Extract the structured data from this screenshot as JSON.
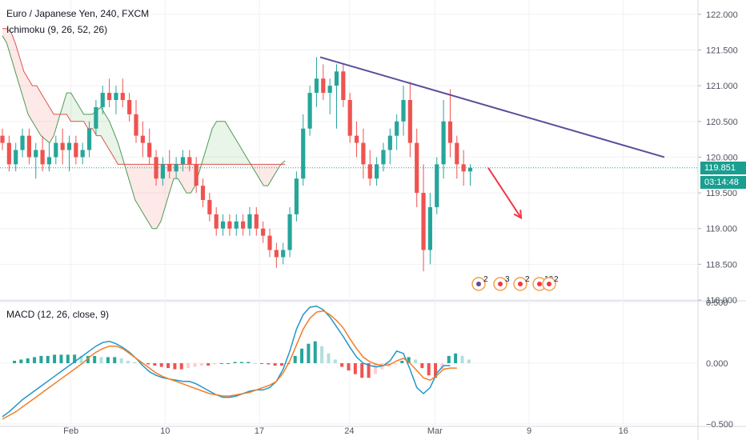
{
  "symbol_line": "Euro / Japanese Yen, 240, FXCM",
  "indicators": {
    "ichimoku_label": "Ichimoku (9, 26, 52, 26)",
    "macd_label": "MACD (12, 26, close, 9)"
  },
  "price_tags": {
    "last_price": "119.851",
    "countdown": "03:14:48"
  },
  "event_badges": [
    "2",
    "3",
    "2",
    "10",
    "2"
  ],
  "chart_data": [
    {
      "type": "candlestick",
      "title": "Euro / Japanese Yen, 240, FXCM",
      "ylim": [
        118.0,
        122.2
      ],
      "y_ticks": [
        "122.000",
        "121.500",
        "121.000",
        "120.500",
        "120.000",
        "119.500",
        "119.000",
        "118.500",
        "118.000"
      ],
      "y_tick_values": [
        122.0,
        121.5,
        121.0,
        120.5,
        120.0,
        119.5,
        119.0,
        118.5,
        118.0
      ],
      "x_tick_labels": [
        "Feb",
        "10",
        "17",
        "24",
        "Mar",
        "9",
        "16"
      ],
      "last_price": 119.851,
      "candles": [
        {
          "o": 120.3,
          "h": 120.4,
          "l": 120.1,
          "c": 120.2
        },
        {
          "o": 120.2,
          "h": 120.3,
          "l": 119.8,
          "c": 119.9
        },
        {
          "o": 119.9,
          "h": 120.2,
          "l": 119.8,
          "c": 120.1
        },
        {
          "o": 120.1,
          "h": 120.4,
          "l": 120.0,
          "c": 120.3
        },
        {
          "o": 120.3,
          "h": 120.4,
          "l": 119.9,
          "c": 120.0
        },
        {
          "o": 120.0,
          "h": 120.2,
          "l": 119.7,
          "c": 120.1
        },
        {
          "o": 120.1,
          "h": 120.3,
          "l": 119.8,
          "c": 119.9
        },
        {
          "o": 119.9,
          "h": 120.2,
          "l": 119.8,
          "c": 120.0
        },
        {
          "o": 120.0,
          "h": 120.3,
          "l": 119.9,
          "c": 120.2
        },
        {
          "o": 120.2,
          "h": 120.4,
          "l": 119.9,
          "c": 120.1
        },
        {
          "o": 120.1,
          "h": 120.3,
          "l": 119.8,
          "c": 120.2
        },
        {
          "o": 120.2,
          "h": 120.3,
          "l": 119.9,
          "c": 120.0
        },
        {
          "o": 120.0,
          "h": 120.2,
          "l": 119.9,
          "c": 120.1
        },
        {
          "o": 120.1,
          "h": 120.5,
          "l": 120.0,
          "c": 120.4
        },
        {
          "o": 120.4,
          "h": 120.8,
          "l": 120.3,
          "c": 120.7
        },
        {
          "o": 120.7,
          "h": 121.0,
          "l": 120.6,
          "c": 120.9
        },
        {
          "o": 120.9,
          "h": 121.1,
          "l": 120.7,
          "c": 120.8
        },
        {
          "o": 120.8,
          "h": 121.0,
          "l": 120.6,
          "c": 120.9
        },
        {
          "o": 120.9,
          "h": 121.1,
          "l": 120.7,
          "c": 120.8
        },
        {
          "o": 120.8,
          "h": 120.9,
          "l": 120.5,
          "c": 120.6
        },
        {
          "o": 120.6,
          "h": 120.8,
          "l": 120.2,
          "c": 120.3
        },
        {
          "o": 120.3,
          "h": 120.5,
          "l": 120.0,
          "c": 120.2
        },
        {
          "o": 120.2,
          "h": 120.4,
          "l": 119.9,
          "c": 120.0
        },
        {
          "o": 120.0,
          "h": 120.1,
          "l": 119.6,
          "c": 119.7
        },
        {
          "o": 119.7,
          "h": 120.0,
          "l": 119.6,
          "c": 119.9
        },
        {
          "o": 119.9,
          "h": 120.1,
          "l": 119.7,
          "c": 119.8
        },
        {
          "o": 119.8,
          "h": 120.0,
          "l": 119.7,
          "c": 119.9
        },
        {
          "o": 119.9,
          "h": 120.1,
          "l": 119.8,
          "c": 120.0
        },
        {
          "o": 120.0,
          "h": 120.1,
          "l": 119.8,
          "c": 119.9
        },
        {
          "o": 119.9,
          "h": 120.0,
          "l": 119.5,
          "c": 119.6
        },
        {
          "o": 119.6,
          "h": 119.7,
          "l": 119.3,
          "c": 119.4
        },
        {
          "o": 119.4,
          "h": 119.5,
          "l": 119.1,
          "c": 119.2
        },
        {
          "o": 119.2,
          "h": 119.3,
          "l": 118.9,
          "c": 119.0
        },
        {
          "o": 119.0,
          "h": 119.2,
          "l": 118.9,
          "c": 119.1
        },
        {
          "o": 119.1,
          "h": 119.2,
          "l": 118.9,
          "c": 119.0
        },
        {
          "o": 119.0,
          "h": 119.2,
          "l": 118.9,
          "c": 119.1
        },
        {
          "o": 119.1,
          "h": 119.2,
          "l": 118.9,
          "c": 119.0
        },
        {
          "o": 119.0,
          "h": 119.3,
          "l": 118.9,
          "c": 119.2
        },
        {
          "o": 119.2,
          "h": 119.3,
          "l": 118.9,
          "c": 119.0
        },
        {
          "o": 119.0,
          "h": 119.1,
          "l": 118.8,
          "c": 118.9
        },
        {
          "o": 118.9,
          "h": 119.0,
          "l": 118.6,
          "c": 118.7
        },
        {
          "o": 118.7,
          "h": 118.8,
          "l": 118.45,
          "c": 118.6
        },
        {
          "o": 118.6,
          "h": 118.8,
          "l": 118.5,
          "c": 118.7
        },
        {
          "o": 118.7,
          "h": 119.3,
          "l": 118.6,
          "c": 119.2
        },
        {
          "o": 119.2,
          "h": 119.8,
          "l": 119.1,
          "c": 119.7
        },
        {
          "o": 119.7,
          "h": 120.6,
          "l": 119.6,
          "c": 120.4
        },
        {
          "o": 120.4,
          "h": 121.0,
          "l": 120.3,
          "c": 120.9
        },
        {
          "o": 120.9,
          "h": 121.4,
          "l": 120.7,
          "c": 121.1
        },
        {
          "o": 121.1,
          "h": 121.3,
          "l": 120.8,
          "c": 120.9
        },
        {
          "o": 120.9,
          "h": 121.1,
          "l": 120.6,
          "c": 121.0
        },
        {
          "o": 121.0,
          "h": 121.3,
          "l": 120.4,
          "c": 121.2
        },
        {
          "o": 121.2,
          "h": 121.3,
          "l": 120.7,
          "c": 120.8
        },
        {
          "o": 120.8,
          "h": 120.9,
          "l": 120.2,
          "c": 120.3
        },
        {
          "o": 120.3,
          "h": 120.5,
          "l": 120.0,
          "c": 120.2
        },
        {
          "o": 120.2,
          "h": 120.4,
          "l": 119.7,
          "c": 119.9
        },
        {
          "o": 119.9,
          "h": 120.1,
          "l": 119.6,
          "c": 119.7
        },
        {
          "o": 119.7,
          "h": 120.0,
          "l": 119.6,
          "c": 119.9
        },
        {
          "o": 119.9,
          "h": 120.2,
          "l": 119.8,
          "c": 120.1
        },
        {
          "o": 120.1,
          "h": 120.4,
          "l": 119.9,
          "c": 120.3
        },
        {
          "o": 120.3,
          "h": 120.6,
          "l": 120.1,
          "c": 120.5
        },
        {
          "o": 120.5,
          "h": 121.0,
          "l": 120.3,
          "c": 120.8
        },
        {
          "o": 120.8,
          "h": 121.05,
          "l": 120.0,
          "c": 120.2
        },
        {
          "o": 120.2,
          "h": 120.4,
          "l": 119.3,
          "c": 119.5
        },
        {
          "o": 119.5,
          "h": 119.9,
          "l": 118.4,
          "c": 118.7
        },
        {
          "o": 118.7,
          "h": 119.5,
          "l": 118.5,
          "c": 119.3
        },
        {
          "o": 119.3,
          "h": 120.0,
          "l": 119.2,
          "c": 119.9
        },
        {
          "o": 119.9,
          "h": 120.8,
          "l": 119.7,
          "c": 120.5
        },
        {
          "o": 120.5,
          "h": 120.95,
          "l": 120.0,
          "c": 120.2
        },
        {
          "o": 120.2,
          "h": 120.3,
          "l": 119.7,
          "c": 119.9
        },
        {
          "o": 119.9,
          "h": 120.1,
          "l": 119.6,
          "c": 119.8
        },
        {
          "o": 119.8,
          "h": 119.9,
          "l": 119.6,
          "c": 119.85
        }
      ],
      "ichimoku": {
        "conversion_line": [
          120.6,
          120.45,
          120.3,
          120.2,
          120.2,
          120.15,
          120.1,
          120.1,
          120.15,
          120.2,
          120.2,
          120.25,
          120.3,
          120.5,
          120.7,
          120.85,
          120.9,
          120.9,
          120.9,
          120.85,
          120.7,
          120.5,
          120.3,
          120.1,
          120.0,
          120.0,
          120.0,
          120.0,
          120.0,
          119.8,
          119.6,
          119.4,
          119.2,
          119.1,
          119.1,
          119.1,
          119.1,
          119.1,
          119.1,
          119.0,
          118.9,
          118.8,
          118.8,
          119.0,
          119.3,
          119.8,
          120.3,
          120.7,
          120.8,
          120.9,
          120.9,
          120.8,
          120.6,
          120.4,
          120.2,
          120.0,
          119.9,
          120.0,
          120.1,
          120.2,
          120.4,
          120.5,
          120.2,
          119.8,
          119.6,
          119.8,
          120.1,
          120.2,
          120.0,
          119.9,
          119.9
        ],
        "base_line": [
          121.6,
          121.5,
          121.3,
          121.1,
          120.9,
          120.8,
          120.7,
          120.7,
          120.7,
          120.8,
          120.9,
          121.0,
          121.1,
          121.1,
          121.1,
          121.1,
          121.1,
          121.0,
          121.0,
          121.0,
          120.95,
          120.9,
          120.85,
          120.8,
          120.8,
          120.7,
          120.5,
          120.3,
          120.1,
          120.0,
          119.9,
          119.8,
          119.7,
          119.6,
          119.5,
          119.5,
          119.5,
          119.5,
          119.5,
          119.5,
          119.5,
          119.5,
          119.6,
          119.8,
          120.0,
          120.0,
          120.0,
          120.0,
          120.0,
          120.0,
          120.0,
          119.9,
          119.9,
          119.9,
          119.9,
          119.9,
          119.9,
          119.9,
          119.9,
          119.9,
          119.9,
          119.9,
          119.9,
          119.9,
          119.9,
          119.9,
          119.9,
          119.9,
          119.9,
          119.9,
          119.9
        ],
        "leading_span_a": [
          121.7,
          121.6,
          121.4,
          121.2,
          121.0,
          120.8,
          120.6,
          120.5,
          120.4,
          120.3,
          120.25,
          120.2,
          120.3,
          120.5,
          120.7,
          120.9,
          120.9,
          120.8,
          120.7,
          120.6,
          120.6,
          120.6,
          120.65,
          120.7,
          120.6,
          120.5,
          120.35,
          120.2,
          120.0,
          119.8,
          119.6,
          119.4,
          119.3,
          119.2,
          119.1,
          119.0,
          119.0,
          119.1,
          119.3,
          119.5,
          119.7,
          119.7,
          119.6,
          119.5,
          119.5,
          119.6,
          119.8,
          120.0,
          120.2,
          120.4,
          120.5,
          120.5,
          120.5,
          120.4,
          120.3,
          120.2,
          120.1,
          120.0,
          119.9,
          119.8,
          119.7,
          119.6,
          119.6,
          119.7,
          119.8,
          119.9,
          119.95
        ],
        "leading_span_b": [
          121.8,
          121.8,
          121.75,
          121.6,
          121.4,
          121.2,
          121.1,
          121.0,
          121.0,
          120.9,
          120.8,
          120.7,
          120.6,
          120.6,
          120.6,
          120.6,
          120.5,
          120.5,
          120.5,
          120.5,
          120.4,
          120.4,
          120.3,
          120.3,
          120.2,
          120.1,
          120.0,
          119.9,
          119.9,
          119.9,
          119.9,
          119.9,
          119.9,
          119.9,
          119.9,
          119.9,
          119.9,
          119.9,
          119.9,
          119.9,
          119.9,
          119.9,
          119.9,
          119.9,
          119.9,
          119.9,
          119.9,
          119.9,
          119.9,
          119.9,
          119.9,
          119.9,
          119.9,
          119.9,
          119.9,
          119.9,
          119.9,
          119.9,
          119.9,
          119.9,
          119.9,
          119.9,
          119.9,
          119.9,
          119.9,
          119.9,
          119.9
        ]
      },
      "drawings": {
        "trendline": {
          "from": {
            "bar": 68,
            "price": 121.4
          },
          "to": {
            "bar": 142,
            "price": 120.0
          }
        },
        "arrow": {
          "from": {
            "bar": 104,
            "price": 119.85
          },
          "to": {
            "bar": 112,
            "price": 119.15
          }
        }
      }
    },
    {
      "type": "macd",
      "title": "MACD (12, 26, close, 9)",
      "ylim": [
        -0.5,
        0.5
      ],
      "y_ticks": [
        "0.500",
        "0.000",
        "−0.500"
      ],
      "y_tick_values": [
        0.5,
        0.0,
        -0.5
      ],
      "macd": [
        -0.44,
        -0.4,
        -0.35,
        -0.3,
        -0.26,
        -0.22,
        -0.18,
        -0.14,
        -0.1,
        -0.06,
        -0.02,
        0.02,
        0.06,
        0.1,
        0.14,
        0.17,
        0.18,
        0.16,
        0.13,
        0.09,
        0.04,
        -0.02,
        -0.07,
        -0.1,
        -0.12,
        -0.13,
        -0.14,
        -0.15,
        -0.15,
        -0.17,
        -0.2,
        -0.23,
        -0.26,
        -0.28,
        -0.28,
        -0.27,
        -0.25,
        -0.23,
        -0.22,
        -0.22,
        -0.2,
        -0.15,
        -0.05,
        0.1,
        0.28,
        0.4,
        0.46,
        0.47,
        0.44,
        0.38,
        0.3,
        0.22,
        0.13,
        0.05,
        0.0,
        -0.02,
        -0.03,
        -0.02,
        0.02,
        0.1,
        0.08,
        -0.05,
        -0.2,
        -0.25,
        -0.2,
        -0.08,
        -0.02,
        -0.02
      ],
      "signal": [
        -0.46,
        -0.43,
        -0.4,
        -0.36,
        -0.32,
        -0.28,
        -0.24,
        -0.2,
        -0.16,
        -0.12,
        -0.08,
        -0.04,
        0.0,
        0.05,
        0.09,
        0.12,
        0.14,
        0.14,
        0.12,
        0.08,
        0.04,
        0.0,
        -0.04,
        -0.08,
        -0.11,
        -0.13,
        -0.15,
        -0.17,
        -0.19,
        -0.21,
        -0.23,
        -0.25,
        -0.26,
        -0.27,
        -0.27,
        -0.26,
        -0.25,
        -0.24,
        -0.22,
        -0.2,
        -0.18,
        -0.15,
        -0.08,
        0.02,
        0.15,
        0.28,
        0.37,
        0.42,
        0.43,
        0.4,
        0.35,
        0.29,
        0.2,
        0.12,
        0.05,
        0.01,
        -0.01,
        -0.02,
        -0.01,
        0.02,
        0.04,
        0.0,
        -0.06,
        -0.12,
        -0.14,
        -0.1,
        -0.05,
        -0.04,
        -0.04
      ],
      "histogram": [
        0.02,
        0.03,
        0.04,
        0.05,
        0.06,
        0.06,
        0.07,
        0.07,
        0.07,
        0.07,
        0.06,
        0.06,
        0.06,
        0.05,
        0.05,
        0.05,
        0.04,
        0.02,
        0.01,
        0.0,
        -0.01,
        -0.02,
        -0.03,
        -0.04,
        -0.05,
        -0.05,
        -0.04,
        -0.03,
        -0.02,
        -0.02,
        -0.01,
        0.0,
        0.0,
        0.01,
        0.01,
        0.01,
        0.0,
        0.0,
        -0.01,
        -0.02,
        -0.02,
        0.0,
        0.06,
        0.12,
        0.16,
        0.18,
        0.14,
        0.08,
        0.03,
        -0.03,
        -0.06,
        -0.09,
        -0.12,
        -0.12,
        -0.09,
        -0.05,
        -0.03,
        -0.01,
        0.02,
        0.05,
        0.03,
        -0.04,
        -0.1,
        -0.12,
        -0.05,
        0.06,
        0.08,
        0.06,
        0.03
      ]
    }
  ]
}
